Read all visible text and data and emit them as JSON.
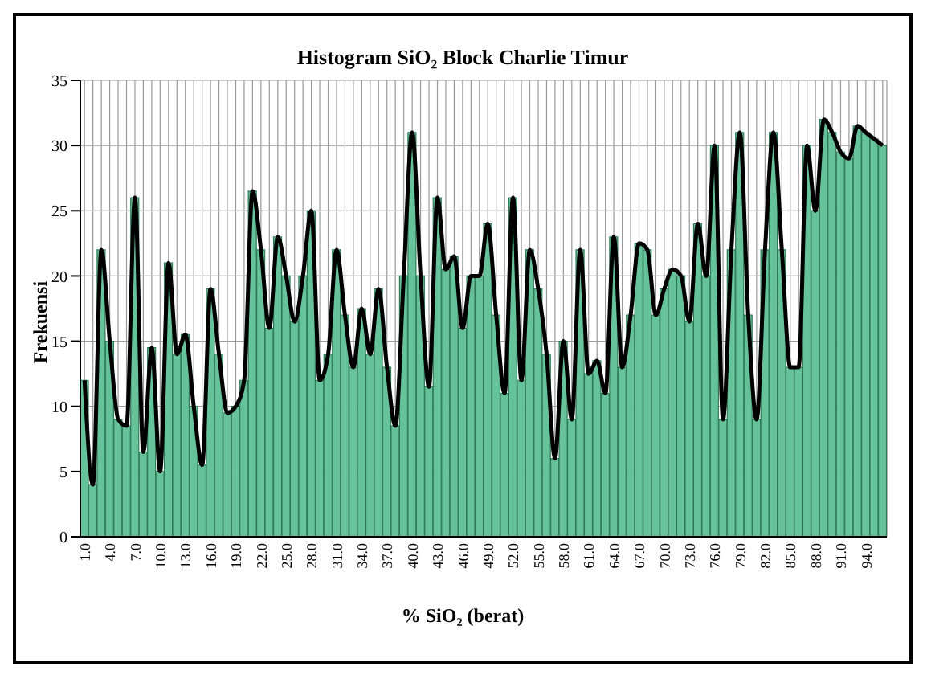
{
  "chart_data": {
    "type": "bar",
    "title": "Histogram SiO₂ Block Charlie Timur",
    "xlabel": "% SiO₂ (berat)",
    "ylabel": "Frekuensi",
    "categories": [
      "1.0",
      null,
      null,
      "4.0",
      null,
      null,
      "7.0",
      null,
      null,
      "10.0",
      null,
      null,
      "13.0",
      null,
      null,
      "16.0",
      null,
      null,
      "19.0",
      null,
      null,
      "22.0",
      null,
      null,
      "25.0",
      null,
      null,
      "28.0",
      null,
      null,
      "31.0",
      null,
      null,
      "34.0",
      null,
      null,
      "37.0",
      null,
      null,
      "40.0",
      null,
      null,
      "43.0",
      null,
      null,
      "46.0",
      null,
      null,
      "49.0",
      null,
      null,
      "52.0",
      null,
      null,
      "55.0",
      null,
      null,
      "58.0",
      null,
      null,
      "61.0",
      null,
      null,
      "64.0",
      null,
      null,
      "67.0",
      null,
      null,
      "70.0",
      null,
      null,
      "73.0",
      null,
      null,
      "76.0",
      null,
      null,
      "79.0",
      null,
      null,
      "82.0",
      null,
      null,
      "85.0",
      null,
      null,
      "88.0",
      null,
      null,
      "91.0",
      null,
      null,
      "94.0",
      null,
      null
    ],
    "series": [
      {
        "color": "#66c29a",
        "values": [
          12,
          4,
          22,
          15,
          9,
          8.5,
          26,
          6.5,
          14.5,
          5,
          21,
          14,
          15.5,
          10,
          5.5,
          19,
          14,
          9.5,
          10,
          12,
          26.5,
          22,
          16,
          23,
          20,
          16.5,
          20,
          25,
          12,
          14,
          22,
          17,
          13,
          17.5,
          14,
          19,
          13,
          8.5,
          20,
          31,
          20,
          11.5,
          26,
          20.5,
          21.5,
          16,
          20,
          20,
          24,
          17,
          11,
          26,
          12,
          22,
          19,
          14,
          6,
          15,
          9,
          22,
          12.5,
          13.5,
          11,
          23,
          13,
          17,
          22.5,
          22,
          17,
          19,
          20.5,
          20,
          16.5,
          24,
          20,
          30,
          9,
          22,
          31,
          17,
          9,
          22,
          31,
          22,
          13,
          13,
          30,
          25,
          32,
          31,
          29.5,
          29,
          31.5,
          31,
          30.5,
          30
        ]
      },
      {
        "type": "line",
        "color": "#000000",
        "values": [
          12,
          4,
          22,
          15,
          9,
          8.5,
          26,
          6.5,
          14.5,
          5,
          21,
          14,
          15.5,
          10,
          5.5,
          19,
          14,
          9.5,
          10,
          12,
          26.5,
          22,
          16,
          23,
          20,
          16.5,
          20,
          25,
          12,
          14,
          22,
          17,
          13,
          17.5,
          14,
          19,
          13,
          8.5,
          20,
          31,
          20,
          11.5,
          26,
          20.5,
          21.5,
          16,
          20,
          20,
          24,
          17,
          11,
          26,
          12,
          22,
          19,
          14,
          6,
          15,
          9,
          22,
          12.5,
          13.5,
          11,
          23,
          13,
          17,
          22.5,
          22,
          17,
          19,
          20.5,
          20,
          16.5,
          24,
          20,
          30,
          9,
          22,
          31,
          17,
          9,
          22,
          31,
          22,
          13,
          13,
          30,
          25,
          32,
          31,
          29.5,
          29,
          31.5,
          31,
          30.5,
          30
        ]
      }
    ],
    "ylim": [
      0,
      35
    ],
    "yticks": [
      0,
      5,
      10,
      15,
      20,
      25,
      30,
      35
    ],
    "grid": true,
    "marker": "none"
  }
}
